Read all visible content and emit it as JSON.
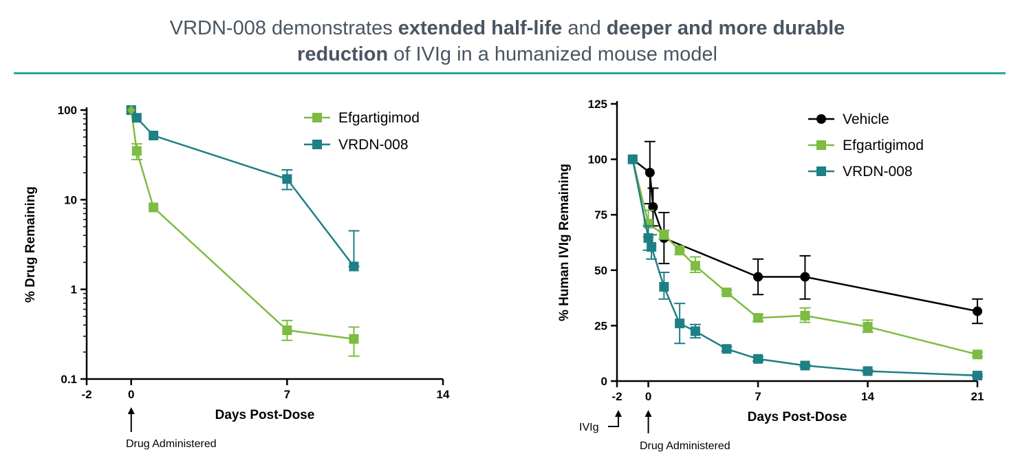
{
  "title": {
    "line1_a": "VRDN-008 demonstrates ",
    "line1_b": "extended half-life",
    "line1_c": " and ",
    "line1_d": "deeper and more durable",
    "line2_a": "reduction",
    "line2_b": " of IVIg in a humanized mouse model"
  },
  "colors": {
    "title_text": "#4a5562",
    "rule": "#2fa4a0",
    "efgartigimod": "#7dbb42",
    "vrdn008": "#1e7f86",
    "vehicle": "#000000"
  },
  "chart_data": [
    {
      "type": "line",
      "scale_y": "log",
      "xlabel": "Days Post-Dose",
      "ylabel": "% Drug Remaining",
      "xlim": [
        -2,
        14
      ],
      "ylim": [
        0.1,
        100
      ],
      "x_ticks": [
        "-2",
        "0",
        "7",
        "14"
      ],
      "y_ticks": [
        "0.1",
        "1",
        "10",
        "100"
      ],
      "legend_position": "top-right",
      "annotations": {
        "drug_label": "Drug Administered"
      },
      "series": [
        {
          "name": "Efgartigimod",
          "marker": "square",
          "color": "#7dbb42",
          "x": [
            0,
            0.25,
            1,
            7,
            10
          ],
          "y": [
            100,
            35,
            8.2,
            0.35,
            0.28
          ],
          "err_upper": [
            100,
            42,
            8.2,
            0.45,
            0.38
          ],
          "err_lower": [
            100,
            28,
            8.2,
            0.27,
            0.18
          ]
        },
        {
          "name": "VRDN-008",
          "marker": "square",
          "color": "#1e7f86",
          "x": [
            0,
            0.25,
            1,
            7,
            10
          ],
          "y": [
            100,
            82,
            52,
            17,
            1.8
          ],
          "err_upper": [
            100,
            82,
            52,
            21.5,
            4.5
          ],
          "err_lower": [
            100,
            82,
            52,
            13,
            1.8
          ]
        }
      ]
    },
    {
      "type": "line",
      "scale_y": "linear",
      "xlabel": "Days Post-Dose",
      "ylabel": "% Human IVIg Remaining",
      "xlim": [
        -2,
        21
      ],
      "ylim": [
        0,
        125
      ],
      "x_ticks": [
        "-2",
        "0",
        "7",
        "14",
        "21"
      ],
      "y_ticks": [
        "0",
        "25",
        "50",
        "75",
        "100",
        "125"
      ],
      "legend_position": "top-right",
      "annotations": {
        "ivig_label": "IVIg",
        "drug_label": "Drug Administered"
      },
      "series": [
        {
          "name": "Vehicle",
          "marker": "circle",
          "color": "#000000",
          "x": [
            -1,
            0.1,
            0.3,
            1,
            7,
            10,
            21
          ],
          "y": [
            100,
            94,
            78.5,
            64.5,
            47,
            47,
            31.5
          ],
          "err_upper": [
            100,
            108,
            87,
            76,
            55,
            56.5,
            37
          ],
          "err_lower": [
            100,
            80,
            70,
            53,
            39,
            37,
            26
          ]
        },
        {
          "name": "Efgartigimod",
          "marker": "square",
          "color": "#7dbb42",
          "x": [
            -1,
            0,
            1,
            2,
            3,
            5,
            7,
            10,
            14,
            21
          ],
          "y": [
            100,
            71,
            66,
            59,
            52,
            40,
            28.5,
            29.5,
            24.5,
            12
          ],
          "err_upper": [
            100,
            77,
            68,
            61,
            56,
            41,
            30,
            33,
            27.5,
            13
          ],
          "err_lower": [
            100,
            65,
            64,
            57,
            49,
            39,
            27,
            26.5,
            22,
            11
          ]
        },
        {
          "name": "VRDN-008",
          "marker": "square",
          "color": "#1e7f86",
          "x": [
            -1,
            0,
            0.2,
            1,
            2,
            3,
            5,
            7,
            10,
            14,
            21
          ],
          "y": [
            100,
            64.5,
            60.5,
            42.5,
            26,
            22.5,
            14.5,
            10,
            7,
            4.5,
            2.5
          ],
          "err_upper": [
            100,
            70,
            66,
            49,
            35,
            25.5,
            15.5,
            11,
            7.5,
            5,
            3
          ],
          "err_lower": [
            100,
            59,
            55,
            37,
            17,
            19.5,
            13.5,
            9,
            6.5,
            4,
            2
          ]
        }
      ]
    }
  ]
}
